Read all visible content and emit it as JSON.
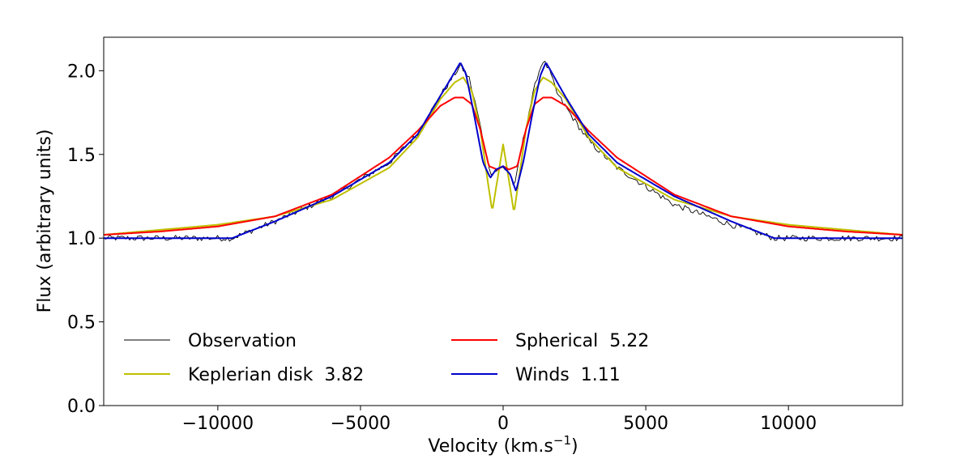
{
  "chart_data": {
    "type": "line",
    "title": "",
    "xlabel": "Velocity (km.s",
    "xlabel_sup": "−1",
    "xlabel_end": ")",
    "ylabel": "Flux (arbitrary units)",
    "xlim": [
      -14000,
      14000
    ],
    "ylim": [
      0.0,
      2.2
    ],
    "xticks": [
      -10000,
      -5000,
      0,
      5000,
      10000
    ],
    "xtick_labels": [
      "−10000",
      "−5000",
      "0",
      "5000",
      "10000"
    ],
    "yticks": [
      0.0,
      0.5,
      1.0,
      1.5,
      2.0
    ],
    "ytick_labels": [
      "0.0",
      "0.5",
      "1.0",
      "1.5",
      "2.0"
    ],
    "legend_position": "lower-left",
    "series": [
      {
        "name": "Observation",
        "color": "#000000",
        "noise": 0.018,
        "x": [
          -14000,
          -9500,
          -8000,
          -6000,
          -4000,
          -3000,
          -2200,
          -1700,
          -1500,
          -1200,
          -900,
          -600,
          -400,
          -200,
          0,
          200,
          400,
          600,
          900,
          1200,
          1400,
          1600,
          1900,
          2400,
          3000,
          4000,
          6000,
          8000,
          9500,
          14000
        ],
        "y": [
          1.0,
          1.0,
          1.1,
          1.25,
          1.45,
          1.62,
          1.85,
          1.98,
          2.03,
          1.96,
          1.75,
          1.5,
          1.38,
          1.41,
          1.42,
          1.4,
          1.3,
          1.5,
          1.75,
          1.97,
          2.06,
          2.01,
          1.86,
          1.73,
          1.58,
          1.42,
          1.2,
          1.08,
          1.0,
          1.0
        ]
      },
      {
        "name": "Keplerian disk  3.82",
        "color": "#bfbf00",
        "x": [
          -14000,
          -12000,
          -10000,
          -8000,
          -6000,
          -4000,
          -3000,
          -2200,
          -1700,
          -1400,
          -1100,
          -800,
          -550,
          -380,
          -200,
          0,
          200,
          380,
          550,
          800,
          1100,
          1400,
          1700,
          2200,
          3000,
          4000,
          6000,
          8000,
          10000,
          12000,
          14000
        ],
        "y": [
          1.02,
          1.05,
          1.08,
          1.13,
          1.23,
          1.42,
          1.6,
          1.83,
          1.93,
          1.96,
          1.88,
          1.65,
          1.35,
          1.16,
          1.35,
          1.56,
          1.35,
          1.15,
          1.35,
          1.65,
          1.88,
          1.96,
          1.93,
          1.83,
          1.6,
          1.42,
          1.23,
          1.13,
          1.08,
          1.05,
          1.02
        ]
      },
      {
        "name": "Spherical  5.22",
        "color": "#ff0000",
        "x": [
          -14000,
          -12000,
          -10000,
          -8000,
          -6000,
          -4000,
          -3000,
          -2200,
          -1700,
          -1400,
          -1100,
          -800,
          -500,
          -200,
          0,
          200,
          500,
          800,
          1100,
          1400,
          1700,
          2200,
          3000,
          4000,
          6000,
          8000,
          10000,
          12000,
          14000
        ],
        "y": [
          1.02,
          1.04,
          1.07,
          1.13,
          1.26,
          1.48,
          1.64,
          1.79,
          1.84,
          1.84,
          1.8,
          1.65,
          1.43,
          1.41,
          1.43,
          1.41,
          1.43,
          1.65,
          1.8,
          1.84,
          1.84,
          1.79,
          1.64,
          1.48,
          1.26,
          1.13,
          1.07,
          1.04,
          1.02
        ]
      },
      {
        "name": "Winds  1.11",
        "color": "#0000cc",
        "x": [
          -14000,
          -9500,
          -8000,
          -6000,
          -4000,
          -3000,
          -2200,
          -1700,
          -1500,
          -1300,
          -1000,
          -700,
          -450,
          -250,
          0,
          250,
          450,
          700,
          1000,
          1300,
          1500,
          1700,
          2200,
          3000,
          4000,
          6000,
          8000,
          9500,
          14000
        ],
        "y": [
          1.0,
          1.0,
          1.1,
          1.25,
          1.45,
          1.62,
          1.85,
          1.99,
          2.05,
          1.98,
          1.72,
          1.45,
          1.36,
          1.41,
          1.43,
          1.38,
          1.28,
          1.45,
          1.72,
          1.97,
          2.05,
          1.99,
          1.84,
          1.62,
          1.45,
          1.25,
          1.1,
          1.0,
          1.0
        ]
      }
    ]
  }
}
